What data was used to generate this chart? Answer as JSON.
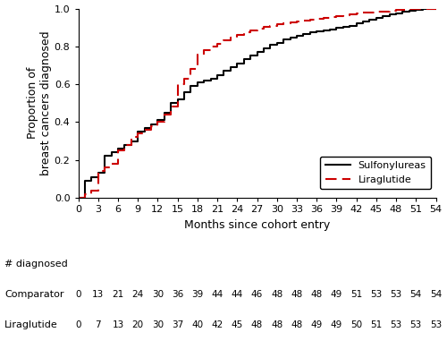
{
  "sulfonylureas_x": [
    0,
    1,
    2,
    3,
    4,
    5,
    6,
    7,
    8,
    9,
    10,
    11,
    12,
    13,
    14,
    15,
    16,
    17,
    18,
    19,
    20,
    21,
    22,
    23,
    24,
    25,
    26,
    27,
    28,
    29,
    30,
    31,
    32,
    33,
    34,
    35,
    36,
    37,
    38,
    39,
    40,
    41,
    42,
    43,
    44,
    45,
    46,
    47,
    48,
    49,
    50,
    51,
    52,
    53,
    54
  ],
  "sulfonylureas_y": [
    0.0,
    0.09,
    0.11,
    0.13,
    0.22,
    0.24,
    0.26,
    0.28,
    0.3,
    0.35,
    0.37,
    0.39,
    0.41,
    0.45,
    0.5,
    0.52,
    0.56,
    0.59,
    0.61,
    0.62,
    0.63,
    0.65,
    0.67,
    0.69,
    0.71,
    0.735,
    0.75,
    0.77,
    0.79,
    0.81,
    0.82,
    0.835,
    0.845,
    0.855,
    0.865,
    0.875,
    0.88,
    0.885,
    0.89,
    0.9,
    0.905,
    0.91,
    0.92,
    0.93,
    0.94,
    0.95,
    0.96,
    0.97,
    0.975,
    0.985,
    0.99,
    0.995,
    1.0,
    1.0,
    1.0
  ],
  "liraglutide_x": [
    0,
    1,
    2,
    3,
    4,
    5,
    6,
    7,
    8,
    9,
    10,
    11,
    12,
    13,
    14,
    15,
    16,
    17,
    18,
    19,
    20,
    21,
    22,
    23,
    24,
    25,
    26,
    27,
    28,
    29,
    30,
    31,
    32,
    33,
    34,
    35,
    36,
    37,
    38,
    39,
    40,
    41,
    42,
    43,
    44,
    45,
    46,
    47,
    48,
    49,
    50,
    51,
    52,
    53,
    54
  ],
  "liraglutide_y": [
    0.0,
    0.02,
    0.04,
    0.14,
    0.16,
    0.18,
    0.25,
    0.28,
    0.32,
    0.34,
    0.36,
    0.38,
    0.4,
    0.44,
    0.48,
    0.6,
    0.63,
    0.68,
    0.755,
    0.78,
    0.8,
    0.815,
    0.83,
    0.845,
    0.86,
    0.875,
    0.885,
    0.895,
    0.905,
    0.91,
    0.915,
    0.92,
    0.925,
    0.93,
    0.935,
    0.94,
    0.945,
    0.95,
    0.955,
    0.96,
    0.965,
    0.97,
    0.975,
    0.978,
    0.98,
    0.982,
    0.985,
    0.99,
    0.992,
    0.994,
    0.996,
    0.998,
    1.0,
    1.0,
    1.0
  ],
  "xticks": [
    0,
    3,
    6,
    9,
    12,
    15,
    18,
    21,
    24,
    27,
    30,
    33,
    36,
    39,
    42,
    45,
    48,
    51,
    54
  ],
  "yticks": [
    0.0,
    0.2,
    0.4,
    0.6,
    0.8,
    1.0
  ],
  "xlabel": "Months since cohort entry",
  "ylabel": "Proportion of\nbreast cancers diagnosed",
  "legend_labels": [
    "Sulfonylureas",
    "Liraglutide"
  ],
  "table_header": "# diagnosed",
  "table_row1_label": "Comparator",
  "table_row2_label": "Liraglutide",
  "table_row1_vals": [
    "0",
    "13",
    "21",
    "24",
    "30",
    "36",
    "39",
    "44",
    "44",
    "46",
    "48",
    "48",
    "48",
    "49",
    "51",
    "53",
    "53",
    "54",
    "54"
  ],
  "table_row2_vals": [
    "0",
    "7",
    "13",
    "20",
    "30",
    "37",
    "40",
    "42",
    "45",
    "48",
    "48",
    "48",
    "49",
    "49",
    "50",
    "51",
    "53",
    "53",
    "53"
  ],
  "sulfo_color": "#000000",
  "lira_color": "#cc0000"
}
